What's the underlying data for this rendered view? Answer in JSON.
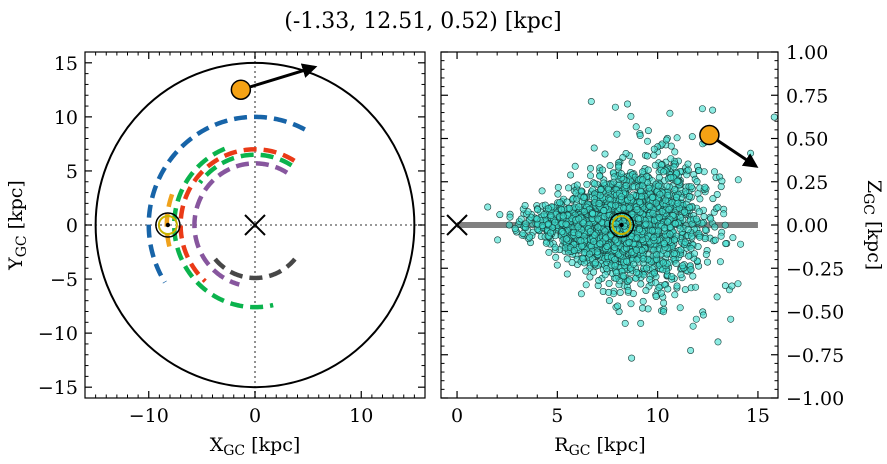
{
  "figure": {
    "title": "(-1.33, 12.51, 0.52) [kpc]"
  },
  "chart_data": [
    {
      "type": "line",
      "panel": "left",
      "xlabel": "X_GC [kpc]",
      "ylabel": "Y_GC [kpc]",
      "xlim": [
        -16,
        16
      ],
      "ylim": [
        -16,
        16
      ],
      "xticks": [
        -10,
        0,
        10
      ],
      "xtick_labels": [
        "−10",
        "0",
        "10"
      ],
      "yticks": [
        -15,
        -10,
        -5,
        0,
        5,
        10,
        15
      ],
      "ytick_labels": [
        "−15",
        "−10",
        "−5",
        "0",
        "5",
        "10",
        "15"
      ],
      "grid": false,
      "boundary_circle": {
        "cx": 0,
        "cy": 0,
        "r": 15,
        "color": "#000000"
      },
      "reference_lines": {
        "x": 0,
        "y": 0,
        "style": "dotted",
        "color": "#777777"
      },
      "galactic_center": {
        "x": 0,
        "y": 0,
        "marker": "x"
      },
      "sun": {
        "x": -8.2,
        "y": 0,
        "marker": "sun-symbol",
        "color": "#c8b400"
      },
      "star": {
        "x": -1.33,
        "y": 12.51,
        "color": "#f5a214"
      },
      "velocity_arrow": {
        "from": [
          -1.33,
          12.51
        ],
        "to": [
          5.6,
          14.6
        ]
      },
      "series": [
        {
          "color": "#1764a8",
          "r": 10.0,
          "theta_deg": [
            62,
            212
          ]
        },
        {
          "color": "#0bb34d",
          "r": 7.6,
          "theta_deg": [
            112,
            283
          ]
        },
        {
          "color": "#0bb34d",
          "r": 6.5,
          "theta_deg": [
            58,
            143
          ]
        },
        {
          "color": "#f0a21c",
          "r": 8.3,
          "theta_deg": [
            160,
            196
          ]
        },
        {
          "color": "#ea3a17",
          "r": 7.0,
          "theta_deg": [
            58,
            228
          ]
        },
        {
          "color": "#87569e",
          "r": 5.7,
          "theta_deg": [
            58,
            255
          ]
        },
        {
          "color": "#474747",
          "r": 4.9,
          "theta_deg": [
            220,
            320
          ]
        }
      ]
    },
    {
      "type": "scatter",
      "panel": "right",
      "xlabel": "R_GC [kpc]",
      "ylabel": "Z_GC [kpc]",
      "xlim": [
        -0.8,
        16
      ],
      "ylim": [
        -1.0,
        1.0
      ],
      "xticks": [
        0,
        5,
        10,
        15
      ],
      "xtick_labels": [
        "0",
        "5",
        "10",
        "15"
      ],
      "yticks": [
        -1.0,
        -0.75,
        -0.5,
        -0.25,
        0.0,
        0.25,
        0.5,
        0.75,
        1.0
      ],
      "ytick_labels": [
        "−1.00",
        "−0.75",
        "−0.50",
        "−0.25",
        "0.00",
        "0.25",
        "0.50",
        "0.75",
        "1.00"
      ],
      "grid": false,
      "point_color": "#40e0d0",
      "point_count": 2500,
      "disk_line": {
        "x": [
          0,
          15
        ],
        "y": 0,
        "color": "#808080"
      },
      "galactic_center": {
        "x": 0,
        "y": 0,
        "marker": "x"
      },
      "sun": {
        "x": 8.2,
        "y": 0,
        "marker": "sun-symbol",
        "color": "#c8b400"
      },
      "star": {
        "x": 12.58,
        "y": 0.52,
        "color": "#f5a214"
      },
      "velocity_arrow": {
        "from": [
          12.58,
          0.52
        ],
        "to": [
          14.9,
          0.34
        ]
      }
    }
  ]
}
